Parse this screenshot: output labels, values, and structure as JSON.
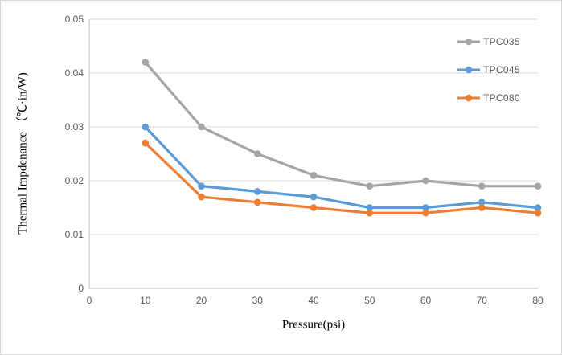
{
  "chart_data": {
    "type": "line",
    "title": "",
    "xlabel": "Pressure(psi)",
    "ylabel": "Thermal Impdenance （℃·in/W)",
    "x": [
      10,
      20,
      30,
      40,
      50,
      60,
      70,
      80
    ],
    "series": [
      {
        "name": "TPC035",
        "color": "#a5a5a5",
        "values": [
          0.042,
          0.03,
          0.025,
          0.021,
          0.019,
          0.02,
          0.019,
          0.019
        ]
      },
      {
        "name": "TPC045",
        "color": "#5b9bd5",
        "values": [
          0.03,
          0.019,
          0.018,
          0.017,
          0.015,
          0.015,
          0.016,
          0.015
        ]
      },
      {
        "name": "TPC080",
        "color": "#ed7d31",
        "values": [
          0.027,
          0.017,
          0.016,
          0.015,
          0.014,
          0.014,
          0.015,
          0.014
        ]
      }
    ],
    "xlim": [
      0,
      80
    ],
    "ylim": [
      0,
      0.05
    ],
    "x_ticks": [
      {
        "value": 0,
        "label": "0"
      },
      {
        "value": 10,
        "label": "10"
      },
      {
        "value": 20,
        "label": "20"
      },
      {
        "value": 30,
        "label": "30"
      },
      {
        "value": 40,
        "label": "40"
      },
      {
        "value": 50,
        "label": "50"
      },
      {
        "value": 60,
        "label": "60"
      },
      {
        "value": 70,
        "label": "70"
      },
      {
        "value": 80,
        "label": "80"
      }
    ],
    "y_ticks": [
      {
        "value": 0,
        "label": "0"
      },
      {
        "value": 0.01,
        "label": "0.01"
      },
      {
        "value": 0.02,
        "label": "0.02"
      },
      {
        "value": 0.03,
        "label": "0.03"
      },
      {
        "value": 0.04,
        "label": "0.04"
      },
      {
        "value": 0.05,
        "label": "0.05"
      }
    ],
    "grid": "horizontal",
    "legend_position": "top-right"
  },
  "colors": {
    "gridline": "#d9d9d9",
    "axis_line": "#bfbfbf",
    "tick_label": "#595959",
    "legend_label": "#595959",
    "axis_title": "#000000",
    "background": "#ffffff",
    "border": "#d7d7d7"
  }
}
